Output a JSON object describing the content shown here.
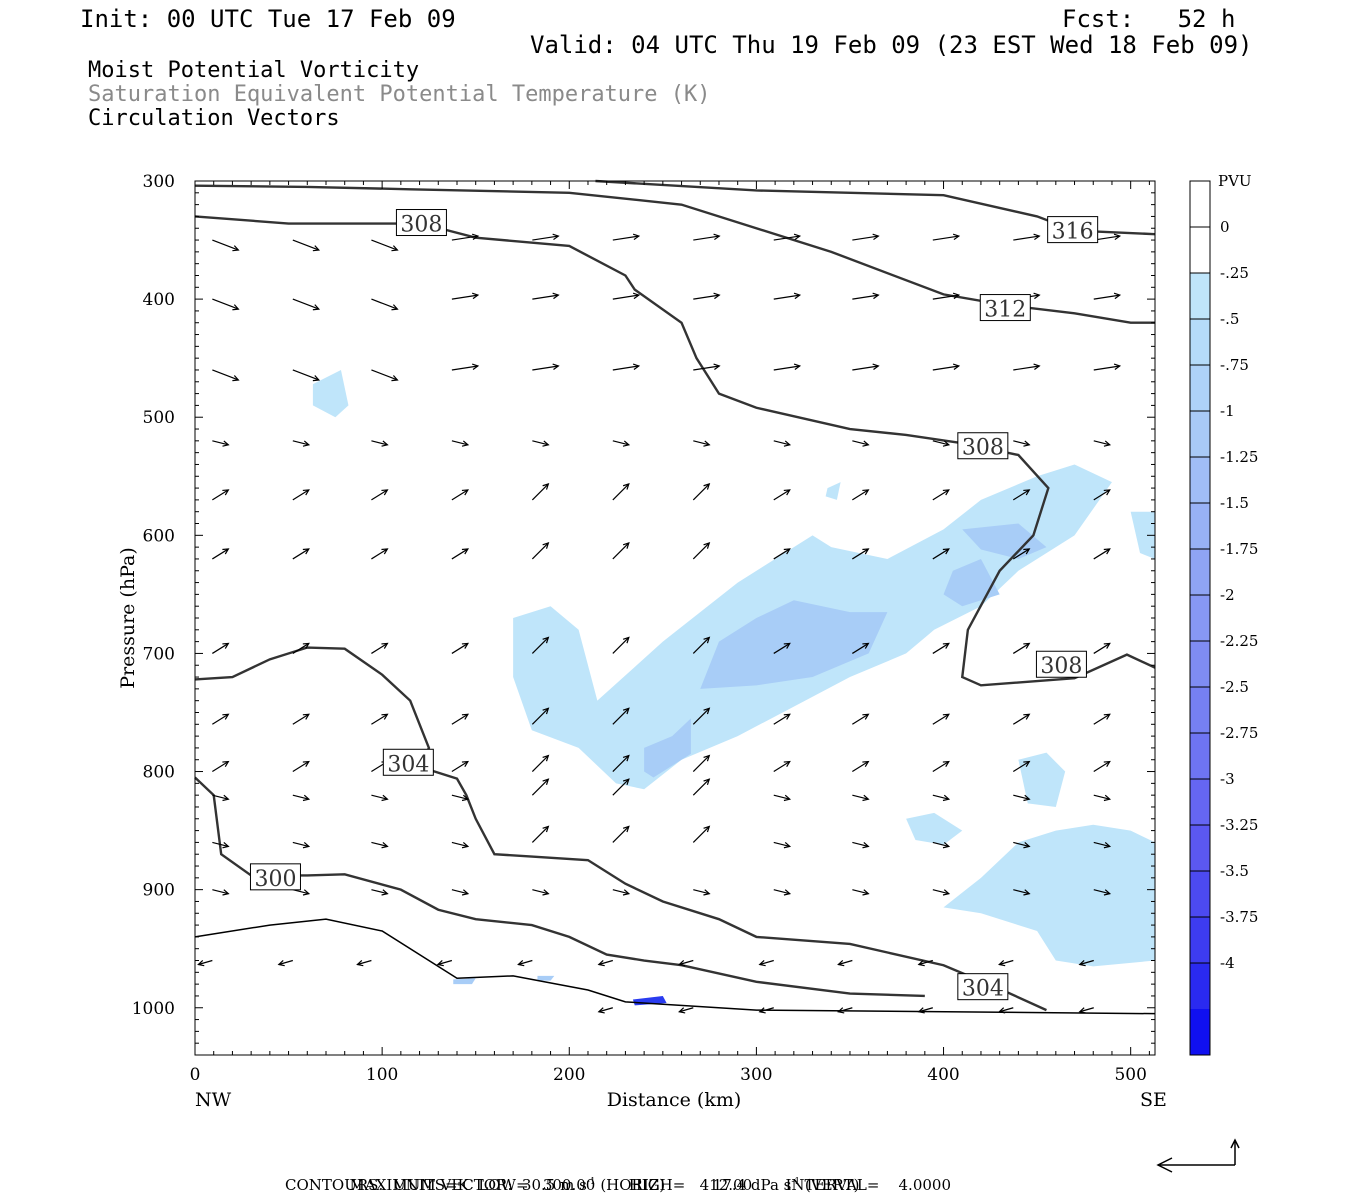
{
  "header": {
    "init": "Init: 00 UTC Tue 17 Feb 09",
    "fcst": "Fcst:   52 h",
    "valid": "Valid: 04 UTC Thu 19 Feb 09 (23 EST Wed 18 Feb 09)",
    "fields": [
      "Moist Potential Vorticity",
      "Saturation Equivalent Potential Temperature (K)",
      "Circulation Vectors"
    ]
  },
  "footer": {
    "max_vector": "MAXIMUM VECTOR:  30.5 m s",
    "max_vector_sup1": "-1",
    "max_vector_horiz": " (HORIZ)",
    "max_vector_vert": "17.4 dPa s",
    "max_vector_sup2": "-1",
    "max_vector_vert_end": " (VERT)",
    "contours": "CONTOURS:  UNITS=K  LOW=   300.00       HIGH=   412.00       INTERVAL=    4.0000"
  },
  "colors": {
    "contour": "#333333",
    "fill_light": "#bfe5fa",
    "fill_mid": "#a8cdf7",
    "fill_dark": "#2a3cf0",
    "vector": "#000000"
  },
  "chart_data": {
    "type": "cross-section",
    "xlabel": "Distance (km)",
    "ylabel": "Pressure (hPa)",
    "xlim": [
      0,
      513
    ],
    "ylim": [
      1040,
      300
    ],
    "x_ticks": [
      0,
      100,
      200,
      300,
      400,
      500
    ],
    "y_ticks": [
      300,
      400,
      500,
      600,
      700,
      800,
      900,
      1000
    ],
    "x_left_label": "NW",
    "x_right_label": "SE",
    "colorbar": {
      "title": "PVU",
      "labels": [
        "0",
        "-.25",
        "-.5",
        "-.75",
        "-1",
        "-1.25",
        "-1.5",
        "-1.75",
        "-2",
        "-2.25",
        "-2.5",
        "-2.75",
        "-3",
        "-3.25",
        "-3.5",
        "-3.75",
        "-4"
      ],
      "colors": [
        "#ffffff",
        "#ffffff",
        "#bfe5fa",
        "#b5dbf9",
        "#aed2f8",
        "#a8c9f7",
        "#a0bdf6",
        "#98b1f5",
        "#8fa4f4",
        "#8798f4",
        "#7f8cf3",
        "#7680f3",
        "#6e74f2",
        "#6566f2",
        "#5b58f1",
        "#4c4af1",
        "#3d3cf0",
        "#2a2af0",
        "#1010f0"
      ]
    },
    "contour_labels": [
      {
        "value": "308",
        "x": 121,
        "p": 336
      },
      {
        "value": "316",
        "x": 469,
        "p": 342
      },
      {
        "value": "312",
        "x": 433,
        "p": 408
      },
      {
        "value": "308",
        "x": 421,
        "p": 525
      },
      {
        "value": "308",
        "x": 463,
        "p": 710
      },
      {
        "value": "304",
        "x": 114,
        "p": 793
      },
      {
        "value": "300",
        "x": 43,
        "p": 890
      },
      {
        "value": "304",
        "x": 421,
        "p": 983
      }
    ],
    "contours": [
      {
        "value": 316,
        "points": [
          [
            214,
            300
          ],
          [
            300,
            308
          ],
          [
            400,
            312
          ],
          [
            450,
            330
          ],
          [
            470,
            342
          ],
          [
            513,
            345
          ]
        ]
      },
      {
        "value": 312,
        "points": [
          [
            0,
            304
          ],
          [
            60,
            305
          ],
          [
            115,
            307
          ],
          [
            200,
            310
          ],
          [
            260,
            320
          ],
          [
            340,
            360
          ],
          [
            400,
            396
          ],
          [
            433,
            405
          ],
          [
            470,
            412
          ],
          [
            500,
            420
          ],
          [
            513,
            420
          ]
        ]
      },
      {
        "value": 308,
        "points": [
          [
            0,
            330
          ],
          [
            50,
            336
          ],
          [
            121,
            336
          ],
          [
            150,
            348
          ],
          [
            200,
            355
          ],
          [
            230,
            380
          ],
          [
            235,
            392
          ],
          [
            260,
            420
          ],
          [
            268,
            450
          ],
          [
            280,
            480
          ],
          [
            300,
            492
          ],
          [
            350,
            510
          ],
          [
            380,
            515
          ],
          [
            410,
            522
          ],
          [
            440,
            532
          ],
          [
            456,
            560
          ],
          [
            448,
            600
          ],
          [
            430,
            630
          ],
          [
            413,
            680
          ],
          [
            410,
            720
          ],
          [
            420,
            727
          ],
          [
            470,
            721
          ],
          [
            498,
            701
          ],
          [
            513,
            712
          ]
        ]
      },
      {
        "value": 304,
        "points": [
          [
            0,
            722
          ],
          [
            20,
            720
          ],
          [
            40,
            705
          ],
          [
            60,
            695
          ],
          [
            80,
            696
          ],
          [
            100,
            718
          ],
          [
            115,
            740
          ],
          [
            125,
            780
          ],
          [
            120,
            796
          ],
          [
            140,
            806
          ],
          [
            145,
            820
          ],
          [
            150,
            840
          ],
          [
            160,
            870
          ],
          [
            180,
            872
          ],
          [
            210,
            875
          ],
          [
            230,
            895
          ],
          [
            250,
            910
          ],
          [
            280,
            925
          ],
          [
            300,
            940
          ],
          [
            350,
            946
          ],
          [
            400,
            964
          ],
          [
            430,
            984
          ],
          [
            455,
            1002
          ]
        ]
      },
      {
        "value": 300,
        "points": [
          [
            0,
            805
          ],
          [
            10,
            820
          ],
          [
            14,
            870
          ],
          [
            30,
            888
          ],
          [
            60,
            888
          ],
          [
            80,
            887
          ],
          [
            110,
            900
          ],
          [
            130,
            917
          ],
          [
            150,
            925
          ],
          [
            180,
            930
          ],
          [
            200,
            940
          ],
          [
            220,
            955
          ],
          [
            240,
            960
          ],
          [
            260,
            964
          ],
          [
            300,
            978
          ],
          [
            350,
            988
          ],
          [
            390,
            990
          ]
        ]
      }
    ],
    "vectors": {
      "x": [
        5,
        48,
        90,
        133,
        176,
        219,
        262,
        305,
        347,
        390,
        433,
        476
      ],
      "note": "MAXIMUM VECTOR 30.5 m s-1 (HORIZ) 17.4 dPa s-1 (VERT)"
    },
    "pv_region_label": "PVU"
  }
}
